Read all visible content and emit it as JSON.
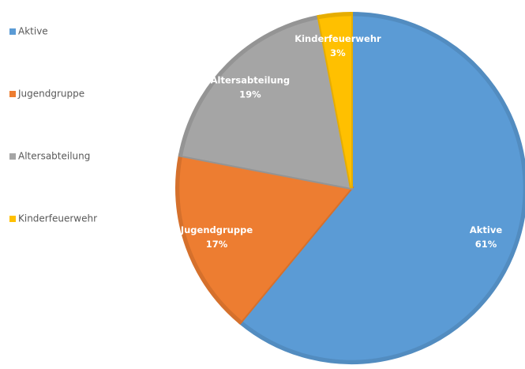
{
  "chart_data": {
    "type": "pie",
    "categories": [
      "Aktive",
      "Jugendgruppe",
      "Altersabteilung",
      "Kinderfeuerwehr"
    ],
    "values": [
      61,
      17,
      19,
      3
    ],
    "value_labels": [
      "61%",
      "17%",
      "19%",
      "3%"
    ],
    "colors": [
      "#5b9bd5",
      "#ed7d31",
      "#a5a5a5",
      "#ffc000"
    ],
    "legend": "left"
  }
}
